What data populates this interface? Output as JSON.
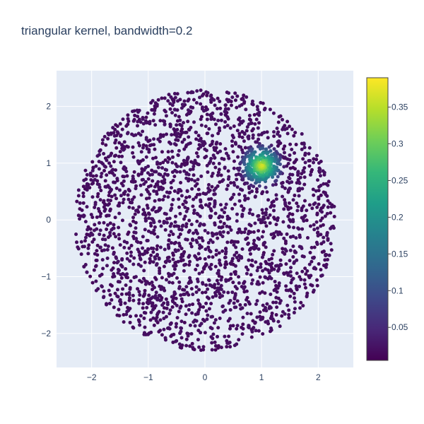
{
  "chart_data": {
    "type": "scatter",
    "title": "triangular kernel, bandwidth=0.2",
    "xlabel": "",
    "ylabel": "",
    "xlim": [
      -2.62,
      2.62
    ],
    "ylim": [
      -2.6,
      2.63
    ],
    "x_ticks": [
      -2,
      -1,
      0,
      1,
      2
    ],
    "x_tick_labels": [
      "−2",
      "−1",
      "0",
      "1",
      "2"
    ],
    "y_ticks": [
      -2,
      -1,
      0,
      1,
      2
    ],
    "y_tick_labels": [
      "−2",
      "−1",
      "0",
      "1",
      "2"
    ],
    "grid": true,
    "marker_size": 5,
    "point_count": 2600,
    "distribution": {
      "background": "uniform disk, radius about 2.3, centered at (0, 0)",
      "cluster": "dense cluster centered near (1.0, 0.95), radius about 0.4"
    },
    "colorbar": {
      "colorscale": "viridis",
      "min": 0.005,
      "max": 0.39,
      "ticks": [
        0.05,
        0.1,
        0.15,
        0.2,
        0.25,
        0.3,
        0.35
      ],
      "tick_labels": [
        "0.05",
        "0.1",
        "0.15",
        "0.2",
        "0.25",
        "0.3",
        "0.35"
      ]
    },
    "colors": {
      "plot_background": "#e5ecf6",
      "grid": "#ffffff",
      "text": "#2a3f5f"
    }
  }
}
